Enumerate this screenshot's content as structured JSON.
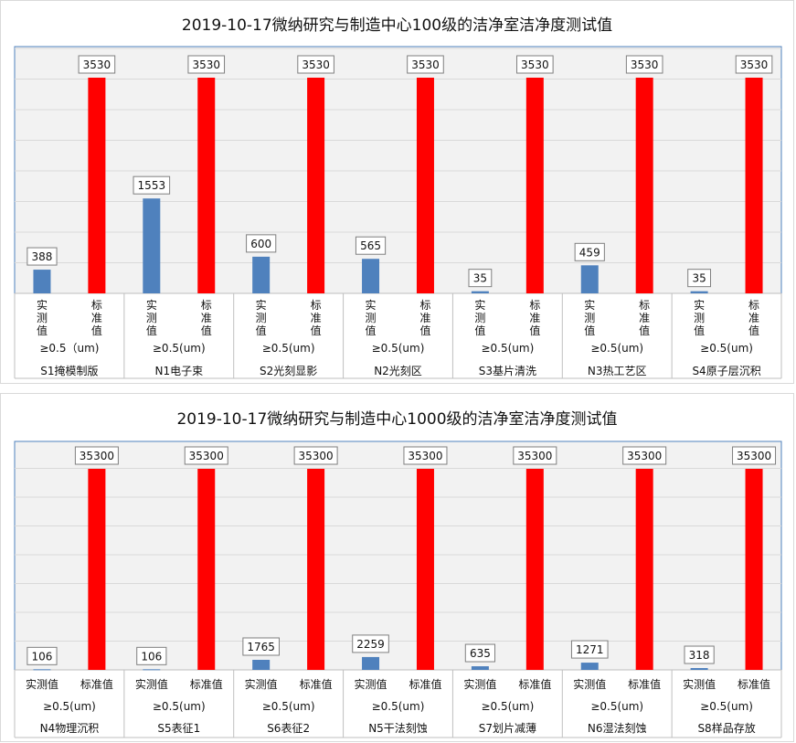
{
  "chart_data": [
    {
      "type": "bar",
      "title": "2019-10-17微纳研究与制造中心100级的洁净室洁净度测试值",
      "series": [
        {
          "name": "实测值",
          "color": "#4f81bd",
          "values": [
            388,
            1553,
            600,
            565,
            35,
            459,
            35
          ]
        },
        {
          "name": "标准值",
          "color": "#ff0000",
          "values": [
            3530,
            3530,
            3530,
            3530,
            3530,
            3530,
            3530
          ]
        }
      ],
      "particle_labels": [
        "≥0.5（um)",
        "≥0.5(um)",
        "≥0.5(um)",
        "≥0.5(um)",
        "≥0.5(um)",
        "≥0.5(um)",
        "≥0.5(um)"
      ],
      "groups": [
        "S1掩模制版",
        "N1电子束",
        "S2光刻显影",
        "N2光刻区",
        "S3基片清洗",
        "N3热工艺区",
        "S4原子层沉积"
      ],
      "ylim": [
        0,
        3530
      ],
      "grid": true,
      "vertical_labels": true
    },
    {
      "type": "bar",
      "title": "2019-10-17微纳研究与制造中心1000级的洁净室洁净度测试值",
      "series": [
        {
          "name": "实测值",
          "color": "#4f81bd",
          "values": [
            106,
            106,
            1765,
            2259,
            635,
            1271,
            318
          ]
        },
        {
          "name": "标准值",
          "color": "#ff0000",
          "values": [
            35300,
            35300,
            35300,
            35300,
            35300,
            35300,
            35300
          ]
        }
      ],
      "particle_labels": [
        "≥0.5(um)",
        "≥0.5(um)",
        "≥0.5(um)",
        "≥0.5(um)",
        "≥0.5(um)",
        "≥0.5(um)",
        "≥0.5(um)"
      ],
      "groups": [
        "N4物理沉积",
        "S5表征1",
        "S6表征2",
        "N5干法刻蚀",
        "S7划片减薄",
        "N6湿法刻蚀",
        "S8样品存放"
      ],
      "ylim": [
        0,
        35300
      ],
      "grid": true,
      "vertical_labels": false
    }
  ]
}
